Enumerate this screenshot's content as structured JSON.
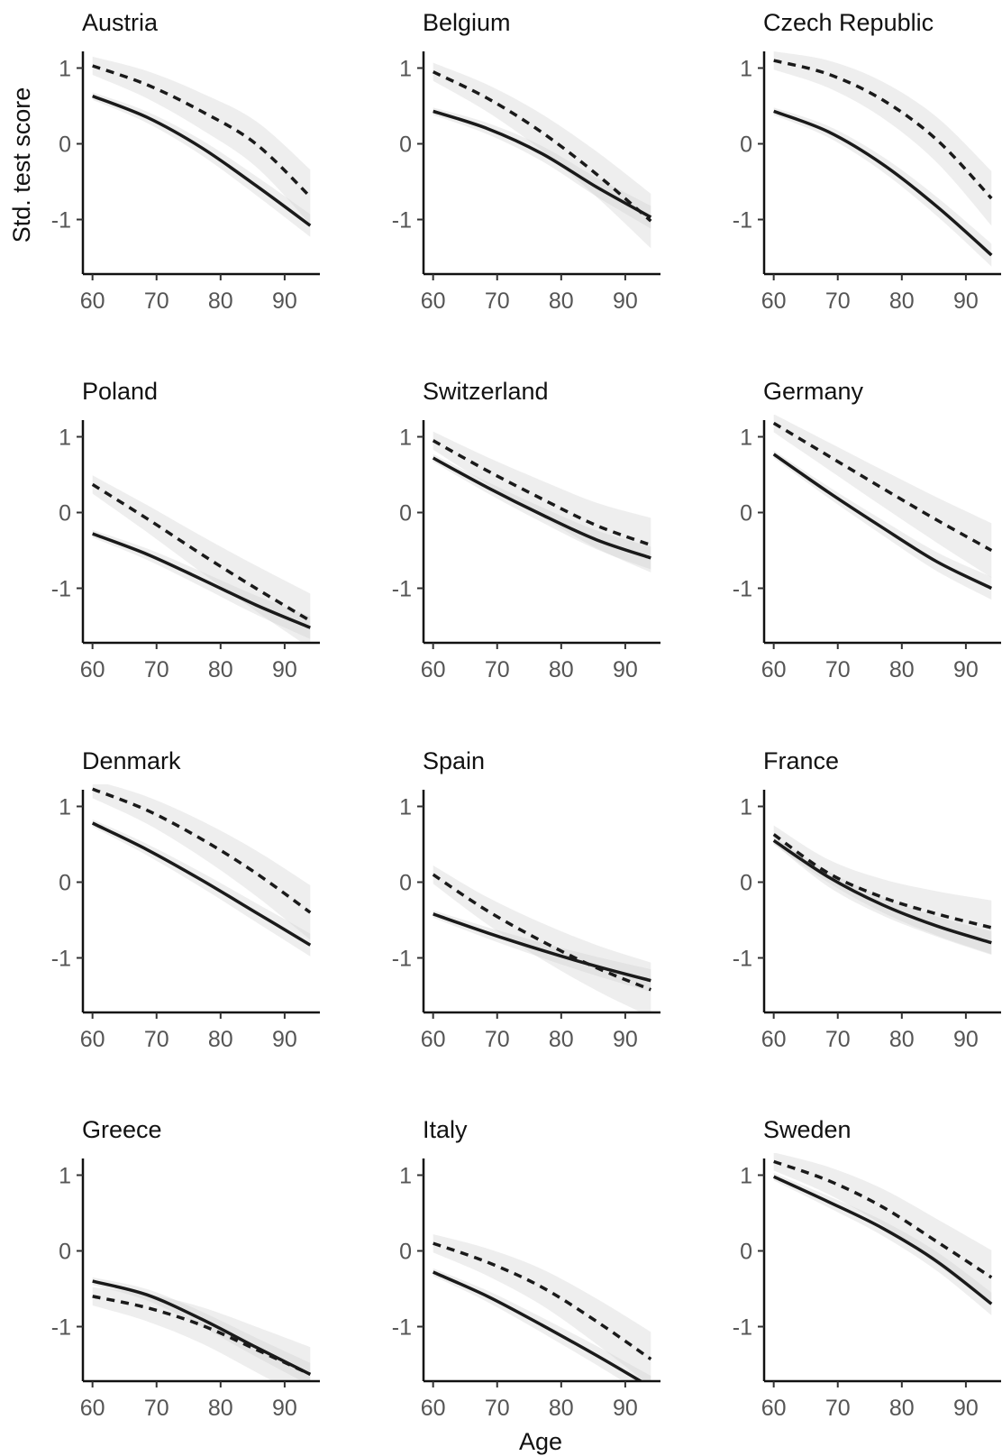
{
  "chart_data": {
    "type": "line",
    "xlabel": "Age",
    "ylabel": "Std. test score",
    "xlim": [
      58.5,
      95.5
    ],
    "ylim": [
      -1.72,
      1.22
    ],
    "xticks": [
      60,
      70,
      80,
      90
    ],
    "yticks": [
      1,
      0,
      -1
    ],
    "ytick_labels": [
      "1",
      "0",
      "-1"
    ],
    "grid": false,
    "legend": "none",
    "series_styles": [
      "solid",
      "dashed"
    ],
    "panels": [
      {
        "title": "Austria",
        "series": [
          {
            "style": "solid",
            "values": [
              0.63,
              0.35,
              -0.05,
              -0.55,
              -1.08
            ]
          },
          {
            "style": "dashed",
            "values": [
              1.03,
              0.78,
              0.43,
              0.0,
              -0.7
            ]
          }
        ]
      },
      {
        "title": "Belgium",
        "series": [
          {
            "style": "solid",
            "values": [
              0.43,
              0.2,
              -0.13,
              -0.57,
              -0.97
            ]
          },
          {
            "style": "dashed",
            "values": [
              0.95,
              0.6,
              0.15,
              -0.4,
              -1.02
            ]
          }
        ]
      },
      {
        "title": "Czech Republic",
        "series": [
          {
            "style": "solid",
            "values": [
              0.43,
              0.16,
              -0.27,
              -0.83,
              -1.47
            ]
          },
          {
            "style": "dashed",
            "values": [
              1.1,
              0.92,
              0.58,
              0.05,
              -0.72
            ]
          }
        ]
      },
      {
        "title": "Poland",
        "series": [
          {
            "style": "solid",
            "values": [
              -0.28,
              -0.55,
              -0.88,
              -1.22,
              -1.52
            ]
          },
          {
            "style": "dashed",
            "values": [
              0.37,
              -0.08,
              -0.55,
              -1.0,
              -1.43
            ]
          }
        ]
      },
      {
        "title": "Switzerland",
        "series": [
          {
            "style": "solid",
            "values": [
              0.72,
              0.33,
              -0.03,
              -0.36,
              -0.6
            ]
          },
          {
            "style": "dashed",
            "values": [
              0.95,
              0.55,
              0.18,
              -0.17,
              -0.43
            ]
          }
        ]
      },
      {
        "title": "Germany",
        "series": [
          {
            "style": "solid",
            "values": [
              0.77,
              0.27,
              -0.2,
              -0.65,
              -1.0
            ]
          },
          {
            "style": "dashed",
            "values": [
              1.18,
              0.75,
              0.32,
              -0.1,
              -0.5
            ]
          }
        ]
      },
      {
        "title": "Denmark",
        "series": [
          {
            "style": "solid",
            "values": [
              0.78,
              0.43,
              0.03,
              -0.4,
              -0.83
            ]
          },
          {
            "style": "dashed",
            "values": [
              1.23,
              0.95,
              0.57,
              0.12,
              -0.4
            ]
          }
        ]
      },
      {
        "title": "Spain",
        "series": [
          {
            "style": "solid",
            "values": [
              -0.42,
              -0.67,
              -0.9,
              -1.11,
              -1.3
            ]
          },
          {
            "style": "dashed",
            "values": [
              0.1,
              -0.38,
              -0.78,
              -1.13,
              -1.42
            ]
          }
        ]
      },
      {
        "title": "France",
        "series": [
          {
            "style": "solid",
            "values": [
              0.55,
              0.07,
              -0.3,
              -0.58,
              -0.8
            ]
          },
          {
            "style": "dashed",
            "values": [
              0.63,
              0.12,
              -0.2,
              -0.42,
              -0.6
            ]
          }
        ]
      },
      {
        "title": "Greece",
        "series": [
          {
            "style": "solid",
            "values": [
              -0.4,
              -0.58,
              -0.9,
              -1.27,
              -1.63
            ]
          },
          {
            "style": "dashed",
            "values": [
              -0.6,
              -0.75,
              -0.98,
              -1.3,
              -1.63
            ]
          }
        ]
      },
      {
        "title": "Italy",
        "series": [
          {
            "style": "solid",
            "values": [
              -0.28,
              -0.6,
              -0.98,
              -1.38,
              -1.8
            ]
          },
          {
            "style": "dashed",
            "values": [
              0.1,
              -0.15,
              -0.48,
              -0.93,
              -1.43
            ]
          }
        ]
      },
      {
        "title": "Sweden",
        "series": [
          {
            "style": "solid",
            "values": [
              0.98,
              0.65,
              0.3,
              -0.14,
              -0.7
            ]
          },
          {
            "style": "dashed",
            "values": [
              1.18,
              0.93,
              0.58,
              0.12,
              -0.35
            ]
          }
        ]
      }
    ],
    "x": [
      60,
      68.5,
      77,
      85.5,
      94
    ]
  }
}
